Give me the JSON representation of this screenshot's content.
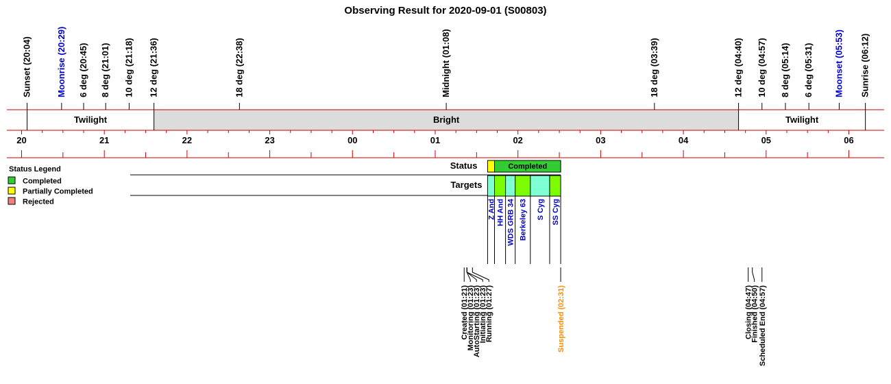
{
  "chart_data": {
    "type": "timeline",
    "title": "Observing Result for 2020-09-01 (S00803)",
    "events": [
      {
        "label": "Sunset (20:04)",
        "time": "20:04",
        "color": "#000000"
      },
      {
        "label": "Moonrise (20:29)",
        "time": "20:29",
        "color": "#0000cc"
      },
      {
        "label": "6 deg (20:45)",
        "time": "20:45",
        "color": "#000000"
      },
      {
        "label": "8 deg (21:01)",
        "time": "21:01",
        "color": "#000000"
      },
      {
        "label": "10 deg (21:18)",
        "time": "21:18",
        "color": "#000000"
      },
      {
        "label": "12 deg (21:36)",
        "time": "21:36",
        "color": "#000000"
      },
      {
        "label": "18 deg (22:38)",
        "time": "22:38",
        "color": "#000000"
      },
      {
        "label": "Midnight (01:08)",
        "time": "01:08",
        "color": "#000000"
      },
      {
        "label": "18 deg (03:39)",
        "time": "03:39",
        "color": "#000000"
      },
      {
        "label": "12 deg (04:40)",
        "time": "04:40",
        "color": "#000000"
      },
      {
        "label": "10 deg (04:57)",
        "time": "04:57",
        "color": "#000000"
      },
      {
        "label": "8 deg (05:14)",
        "time": "05:14",
        "color": "#000000"
      },
      {
        "label": "6 deg (05:31)",
        "time": "05:31",
        "color": "#000000"
      },
      {
        "label": "Moonset (05:53)",
        "time": "05:53",
        "color": "#0000cc"
      },
      {
        "label": "Sunrise (06:12)",
        "time": "06:12",
        "color": "#000000"
      }
    ],
    "sky_bands": [
      {
        "label": "Twilight",
        "start": "20:04",
        "end": "21:36",
        "fill": "#ffffff"
      },
      {
        "label": "Bright",
        "start": "21:36",
        "end": "04:40",
        "fill": "#dcdcdc"
      },
      {
        "label": "Twilight",
        "start": "04:40",
        "end": "06:12",
        "fill": "#ffffff"
      }
    ],
    "hour_ticks": [
      "20",
      "21",
      "22",
      "23",
      "00",
      "01",
      "02",
      "03",
      "04",
      "05",
      "06"
    ],
    "row_labels": {
      "status": "Status",
      "targets": "Targets"
    },
    "status_segments": [
      {
        "label": "",
        "start": "01:38",
        "end": "01:43",
        "fill": "#ffff00"
      },
      {
        "label": "Completed",
        "start": "01:43",
        "end": "02:31",
        "fill": "#33cc33"
      }
    ],
    "targets": [
      {
        "name": "Z And",
        "start": "01:38",
        "end": "01:43",
        "fill": "#7fffd4"
      },
      {
        "name": "HH And",
        "start": "01:43",
        "end": "01:51",
        "fill": "#7cfc00"
      },
      {
        "name": "WDS GRB 34",
        "start": "01:51",
        "end": "01:58",
        "fill": "#7fffd4"
      },
      {
        "name": "Berkeley 63",
        "start": "01:58",
        "end": "02:09",
        "fill": "#7cfc00"
      },
      {
        "name": "S Cyg",
        "start": "02:09",
        "end": "02:23",
        "fill": "#7fffd4"
      },
      {
        "name": "SS Cyg",
        "start": "02:23",
        "end": "02:31",
        "fill": "#7cfc00"
      }
    ],
    "state_events": [
      {
        "label": "Created (01:21)",
        "time": "01:21",
        "color": "#000000"
      },
      {
        "label": "Monitoring (01:23)",
        "time": "01:23",
        "color": "#000000"
      },
      {
        "label": "AutoStarting (01:23)",
        "time": "01:23",
        "color": "#000000"
      },
      {
        "label": "Initiating (01:23)",
        "time": "01:23",
        "color": "#000000"
      },
      {
        "label": "Running (01:27)",
        "time": "01:27",
        "color": "#000000"
      },
      {
        "label": "Suspended (02:31)",
        "time": "02:31",
        "color": "#ff8c00"
      },
      {
        "label": "Closing (04:47)",
        "time": "04:47",
        "color": "#000000"
      },
      {
        "label": "Finished (04:50)",
        "time": "04:50",
        "color": "#000000"
      },
      {
        "label": "Scheduled End (04:57)",
        "time": "04:57",
        "color": "#000000"
      }
    ],
    "legend": {
      "title": "Status Legend",
      "items": [
        {
          "label": "Completed",
          "color": "#33cc33"
        },
        {
          "label": "Partially Completed",
          "color": "#ffff00"
        },
        {
          "label": "Rejected",
          "color": "#f08080"
        }
      ]
    },
    "colors": {
      "axis_lines": "#cc0000",
      "target_label": "#0000cc"
    }
  }
}
